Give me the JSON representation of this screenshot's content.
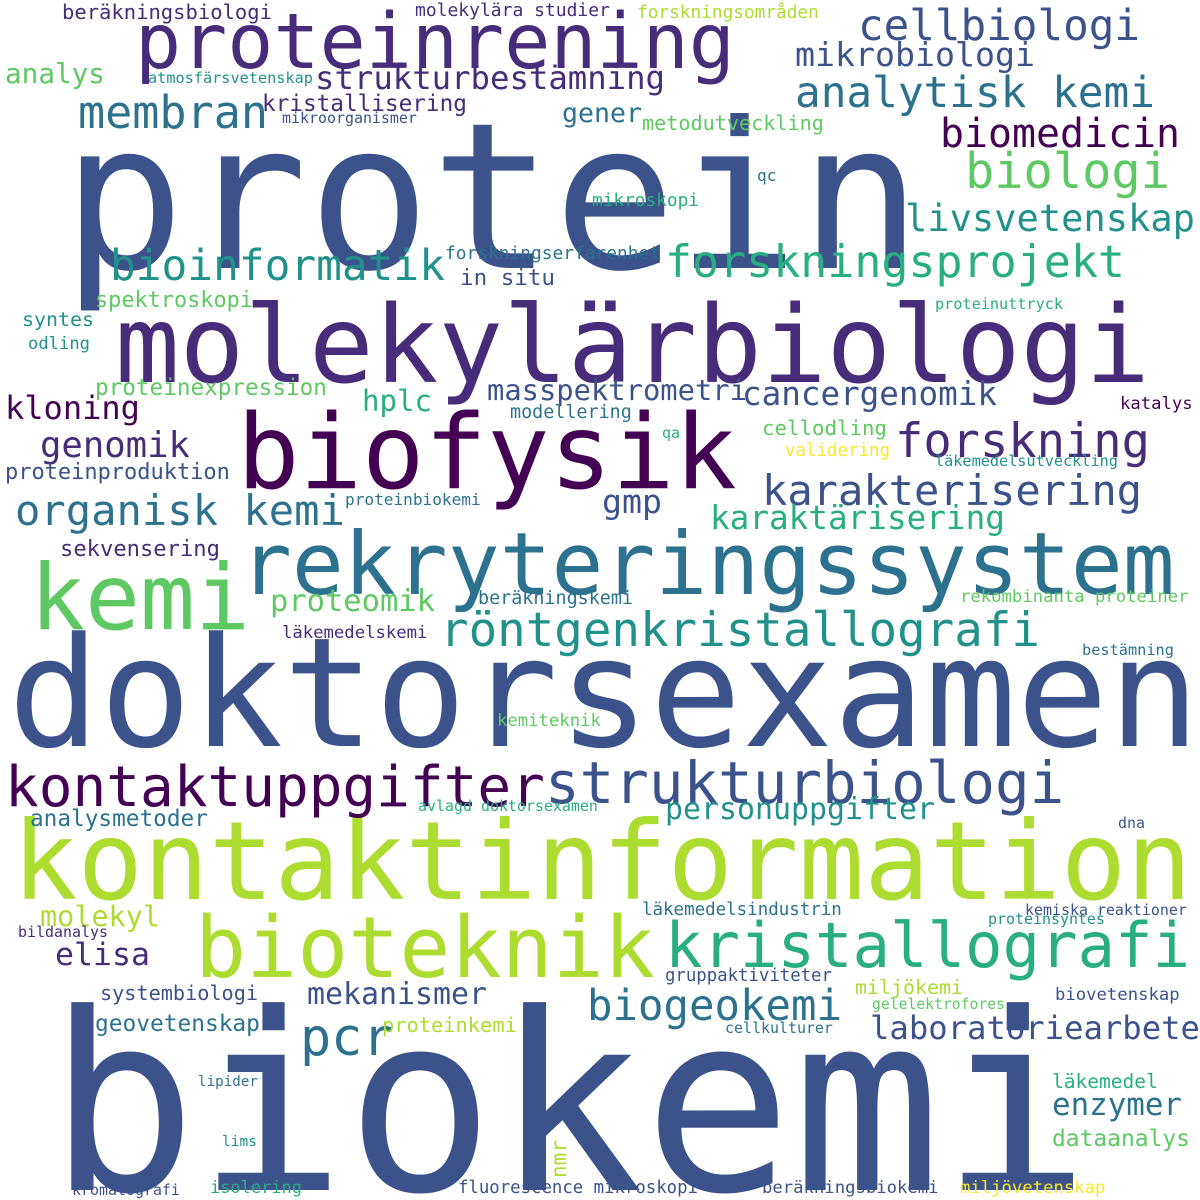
{
  "colors": {
    "background": "#ffffff",
    "palette": [
      "#440154",
      "#472c7a",
      "#3b528b",
      "#2c728e",
      "#21918c",
      "#28ae80",
      "#5ec962",
      "#addc30",
      "#fde725"
    ]
  },
  "words": [
    {
      "text": "biokemi",
      "color": "#3b528b"
    },
    {
      "text": "protein",
      "color": "#3b528b"
    },
    {
      "text": "doktorsexamen",
      "color": "#3b528b"
    },
    {
      "text": "kontaktinformation",
      "color": "#addc30"
    },
    {
      "text": "molekylärbiologi",
      "color": "#472c7a"
    },
    {
      "text": "biofysik",
      "color": "#440154"
    },
    {
      "text": "rekryteringssystem",
      "color": "#2c728e"
    },
    {
      "text": "proteinrening",
      "color": "#472c7a"
    },
    {
      "text": "kemi",
      "color": "#5ec962"
    },
    {
      "text": "bioteknik",
      "color": "#addc30"
    },
    {
      "text": "strukturbiologi",
      "color": "#3b528b"
    },
    {
      "text": "kontaktuppgifter",
      "color": "#440154"
    },
    {
      "text": "kristallografi",
      "color": "#28ae80"
    },
    {
      "text": "röntgenkristallografi",
      "color": "#21918c"
    },
    {
      "text": "forskningsprojekt",
      "color": "#28ae80"
    },
    {
      "text": "cellbiologi",
      "color": "#3b528b"
    },
    {
      "text": "analytisk kemi",
      "color": "#2c728e"
    },
    {
      "text": "organisk kemi",
      "color": "#2c728e"
    },
    {
      "text": "membran",
      "color": "#2c728e"
    },
    {
      "text": "forskning",
      "color": "#472c7a"
    },
    {
      "text": "karakterisering",
      "color": "#3b528b"
    },
    {
      "text": "biologi",
      "color": "#5ec962"
    },
    {
      "text": "bioinformatik",
      "color": "#21918c"
    },
    {
      "text": "biogeokemi",
      "color": "#2c728e"
    },
    {
      "text": "livsvetenskap",
      "color": "#21918c"
    },
    {
      "text": "biomedicin",
      "color": "#440154"
    },
    {
      "text": "strukturbestämning",
      "color": "#472c7a"
    },
    {
      "text": "mikrobiologi",
      "color": "#3b528b"
    },
    {
      "text": "pcr",
      "color": "#2c728e"
    },
    {
      "text": "laboratoriearbete",
      "color": "#3b528b"
    },
    {
      "text": "personuppgifter",
      "color": "#21918c"
    },
    {
      "text": "cancergenomik",
      "color": "#3b528b"
    },
    {
      "text": "masspektrometri",
      "color": "#3b528b"
    },
    {
      "text": "karaktärisering",
      "color": "#28ae80"
    },
    {
      "text": "kloning",
      "color": "#440154"
    },
    {
      "text": "genomik",
      "color": "#472c7a"
    },
    {
      "text": "proteomik",
      "color": "#5ec962"
    },
    {
      "text": "mekanismer",
      "color": "#3b528b"
    },
    {
      "text": "enzymer",
      "color": "#2c728e"
    },
    {
      "text": "elisa",
      "color": "#472c7a"
    },
    {
      "text": "hplc",
      "color": "#28ae80"
    },
    {
      "text": "gmp",
      "color": "#3b528b"
    },
    {
      "text": "kristallisering",
      "color": "#472c7a"
    },
    {
      "text": "gener",
      "color": "#2c728e"
    },
    {
      "text": "molekyl",
      "color": "#addc30"
    },
    {
      "text": "analys",
      "color": "#5ec962"
    },
    {
      "text": "dataanalys",
      "color": "#5ec962"
    },
    {
      "text": "sekvensering",
      "color": "#472c7a"
    },
    {
      "text": "proteinproduktion",
      "color": "#3b528b"
    },
    {
      "text": "proteinexpression",
      "color": "#5ec962"
    },
    {
      "text": "spektroskopi",
      "color": "#5ec962"
    },
    {
      "text": "in situ",
      "color": "#3b528b"
    },
    {
      "text": "analysmetoder",
      "color": "#2c728e"
    },
    {
      "text": "systembiologi",
      "color": "#3b528b"
    },
    {
      "text": "geovetenskap",
      "color": "#2c728e"
    },
    {
      "text": "cellodling",
      "color": "#5ec962"
    },
    {
      "text": "miljökemi",
      "color": "#addc30"
    },
    {
      "text": "proteinkemi",
      "color": "#addc30"
    },
    {
      "text": "beräkningsbiologi",
      "color": "#472c7a"
    },
    {
      "text": "forskningsområden",
      "color": "#addc30"
    },
    {
      "text": "molekylära studier",
      "color": "#472c7a"
    },
    {
      "text": "metodutveckling",
      "color": "#5ec962"
    },
    {
      "text": "atmosfärsvetenskap",
      "color": "#21918c"
    },
    {
      "text": "mikroorganismer",
      "color": "#3b528b"
    },
    {
      "text": "mikroskopi",
      "color": "#28ae80"
    },
    {
      "text": "qc",
      "color": "#2c728e"
    },
    {
      "text": "forskningserfarenhet",
      "color": "#2c728e"
    },
    {
      "text": "proteinuttryck",
      "color": "#28ae80"
    },
    {
      "text": "syntes",
      "color": "#21918c"
    },
    {
      "text": "odling",
      "color": "#21918c"
    },
    {
      "text": "modellering",
      "color": "#2c728e"
    },
    {
      "text": "qa",
      "color": "#28ae80"
    },
    {
      "text": "katalys",
      "color": "#440154"
    },
    {
      "text": "validering",
      "color": "#fde725"
    },
    {
      "text": "läkemedelsutveckling",
      "color": "#21918c"
    },
    {
      "text": "proteinbiokemi",
      "color": "#2c728e"
    },
    {
      "text": "beräkningskemi",
      "color": "#2c728e"
    },
    {
      "text": "rekombinanta proteiner",
      "color": "#5ec962"
    },
    {
      "text": "läkemedelskemi",
      "color": "#472c7a"
    },
    {
      "text": "bestämning",
      "color": "#2c728e"
    },
    {
      "text": "kemiteknik",
      "color": "#5ec962"
    },
    {
      "text": "avlagd doktorsexamen",
      "color": "#28ae80"
    },
    {
      "text": "dna",
      "color": "#3b528b"
    },
    {
      "text": "läkemedelsindustrin",
      "color": "#2c728e"
    },
    {
      "text": "kemiska reaktioner",
      "color": "#3b528b"
    },
    {
      "text": "proteinsyntes",
      "color": "#21918c"
    },
    {
      "text": "bildanalys",
      "color": "#472c7a"
    },
    {
      "text": "gruppaktiviteter",
      "color": "#3b528b"
    },
    {
      "text": "gelelektrofores",
      "color": "#5ec962"
    },
    {
      "text": "biovetenskap",
      "color": "#3b528b"
    },
    {
      "text": "cellkulturer",
      "color": "#2c728e"
    },
    {
      "text": "läkemedel",
      "color": "#28ae80"
    },
    {
      "text": "lipider",
      "color": "#2c728e"
    },
    {
      "text": "lims",
      "color": "#21918c"
    },
    {
      "text": "nmr",
      "color": "#addc30"
    },
    {
      "text": "kromatografi",
      "color": "#3b528b"
    },
    {
      "text": "isolering",
      "color": "#28ae80"
    },
    {
      "text": "fluorescence mikroskopi",
      "color": "#3b528b"
    },
    {
      "text": "beräkningsbiokemi",
      "color": "#3b528b"
    },
    {
      "text": "miljövetenskap",
      "color": "#fde725"
    }
  ]
}
